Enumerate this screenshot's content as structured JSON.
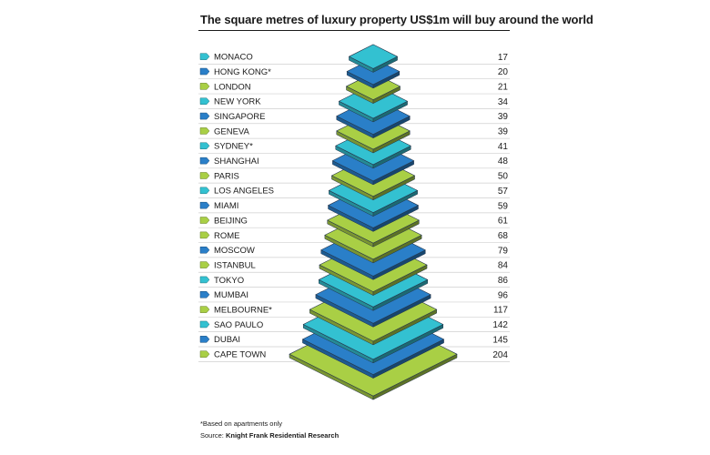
{
  "title": "The square metres of luxury property US$1m will buy around the world",
  "footnote": "*Based on apartments only",
  "source_label": "Source:",
  "source_name": "Knight Frank Residential Research",
  "colors": {
    "cyan": "#33c1d1",
    "blue": "#2a7fc8",
    "green": "#a9cf45"
  },
  "chart_data": {
    "type": "bar",
    "title": "The square metres of luxury property US$1m will buy around the world",
    "xlabel": "",
    "ylabel": "",
    "categories": [
      "MONACO",
      "HONG KONG*",
      "LONDON",
      "NEW YORK",
      "SINGAPORE",
      "GENEVA",
      "SYDNEY*",
      "SHANGHAI",
      "PARIS",
      "LOS ANGELES",
      "MIAMI",
      "BEIJING",
      "ROME",
      "MOSCOW",
      "ISTANBUL",
      "TOKYO",
      "MUMBAI",
      "MELBOURNE*",
      "SAO PAULO",
      "DUBAI",
      "CAPE TOWN"
    ],
    "values": [
      17,
      20,
      21,
      34,
      39,
      39,
      41,
      48,
      50,
      57,
      59,
      61,
      68,
      79,
      84,
      86,
      96,
      117,
      142,
      145,
      204
    ],
    "value_labels": [
      "17",
      "20",
      "21",
      "34",
      "39",
      "39",
      "41",
      "48",
      "50",
      "57",
      "59",
      "61",
      "68",
      "79",
      "84",
      "86",
      "96",
      "117",
      "142",
      "145",
      "204"
    ],
    "color_keys": [
      "cyan",
      "blue",
      "green",
      "cyan",
      "blue",
      "green",
      "cyan",
      "blue",
      "green",
      "cyan",
      "blue",
      "green",
      "green",
      "blue",
      "green",
      "cyan",
      "blue",
      "green",
      "cyan",
      "blue",
      "green"
    ],
    "unit": "square metres",
    "grid": false,
    "legend": "none"
  }
}
